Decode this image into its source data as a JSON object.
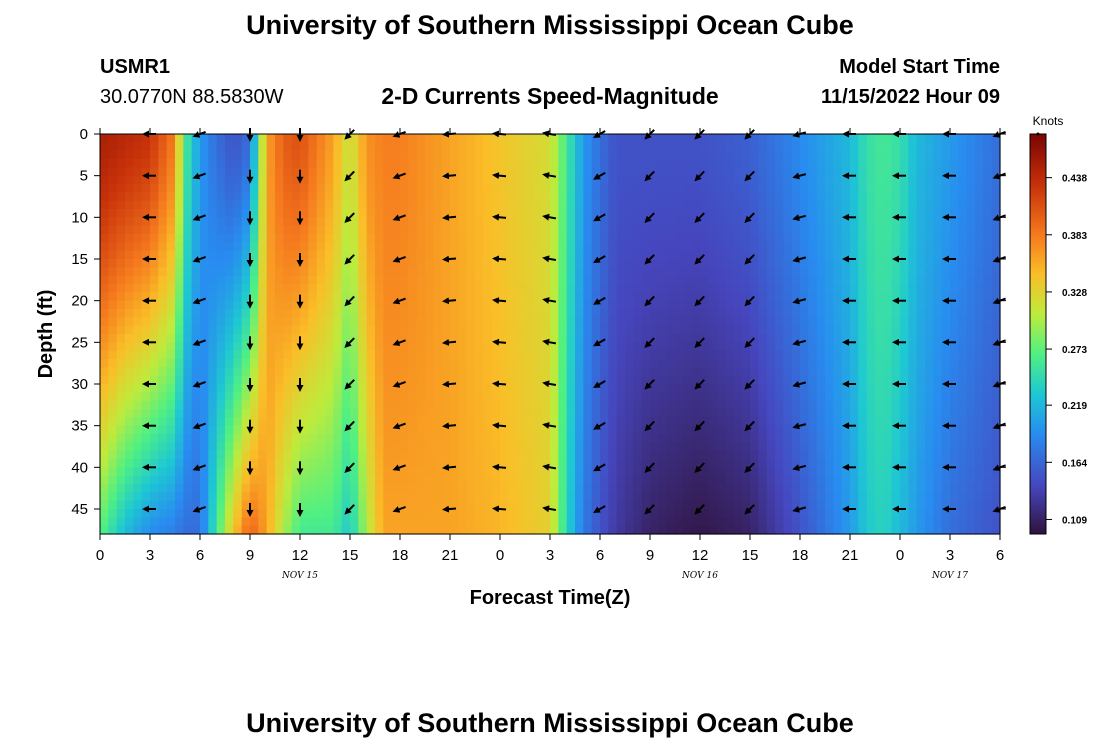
{
  "header": {
    "title": "University of Southern Mississippi Ocean Cube",
    "station_id": "USMR1",
    "station_coords": "30.0770N  88.5830W",
    "subtitle": "2-D Currents Speed-Magnitude",
    "model_start_label": "Model Start Time",
    "model_start_value": "11/15/2022 Hour 09"
  },
  "footer": {
    "title": "University of Southern Mississippi Ocean Cube"
  },
  "chart_data": {
    "type": "heatmap",
    "title": "2-D Currents Speed-Magnitude",
    "xlabel": "Forecast Time(Z)",
    "ylabel": "Depth (ft)",
    "x_ticks": [
      "0",
      "3",
      "6",
      "9",
      "12",
      "15",
      "18",
      "21",
      "0",
      "3",
      "6",
      "9",
      "12",
      "15",
      "18",
      "21",
      "0",
      "3",
      "6"
    ],
    "x_hours": [
      0,
      3,
      6,
      9,
      12,
      15,
      18,
      21,
      24,
      27,
      30,
      33,
      36,
      39,
      42,
      45,
      48,
      51,
      54
    ],
    "date_labels": [
      {
        "label": "NOV 15",
        "hour": 12
      },
      {
        "label": "NOV 16",
        "hour": 36
      },
      {
        "label": "NOV 17",
        "hour": 51
      }
    ],
    "y_ticks": [
      0,
      5,
      10,
      15,
      20,
      25,
      30,
      35,
      40,
      45
    ],
    "ylim": [
      0,
      48
    ],
    "xlim": [
      0,
      54
    ],
    "colorbar": {
      "unit": "Knots",
      "ticks": [
        0.438,
        0.383,
        0.328,
        0.273,
        0.219,
        0.164,
        0.109
      ],
      "range": [
        0.095,
        0.48
      ]
    },
    "speed_profile": {
      "hours": [
        0,
        1.5,
        3,
        4.5,
        5,
        6,
        7,
        8,
        9,
        10,
        11,
        12,
        14,
        15,
        16,
        17,
        18,
        21,
        24,
        27,
        28,
        29,
        30,
        31,
        33,
        36,
        39,
        42,
        45,
        46,
        47,
        48,
        49,
        51,
        54
      ],
      "surface": [
        0.45,
        0.44,
        0.43,
        0.38,
        0.27,
        0.2,
        0.17,
        0.15,
        0.17,
        0.36,
        0.4,
        0.41,
        0.36,
        0.31,
        0.37,
        0.38,
        0.38,
        0.36,
        0.34,
        0.32,
        0.26,
        0.2,
        0.17,
        0.15,
        0.15,
        0.15,
        0.16,
        0.19,
        0.22,
        0.25,
        0.26,
        0.25,
        0.22,
        0.2,
        0.17
      ],
      "bottom": [
        0.27,
        0.22,
        0.19,
        0.18,
        0.17,
        0.17,
        0.26,
        0.34,
        0.4,
        0.36,
        0.3,
        0.26,
        0.26,
        0.23,
        0.3,
        0.36,
        0.36,
        0.36,
        0.35,
        0.33,
        0.24,
        0.18,
        0.15,
        0.13,
        0.11,
        0.1,
        0.11,
        0.15,
        0.2,
        0.23,
        0.24,
        0.22,
        0.2,
        0.17,
        0.15
      ]
    },
    "arrows": {
      "hours": [
        3,
        6,
        9,
        12,
        15,
        18,
        21,
        24,
        27,
        30,
        33,
        36,
        39,
        42,
        45,
        48,
        51,
        54
      ],
      "depths": [
        0,
        5,
        10,
        15,
        20,
        25,
        30,
        35,
        40,
        45
      ],
      "directions_deg": [
        270,
        250,
        180,
        180,
        225,
        250,
        265,
        275,
        280,
        240,
        225,
        225,
        225,
        255,
        270,
        270,
        270,
        250
      ]
    }
  }
}
